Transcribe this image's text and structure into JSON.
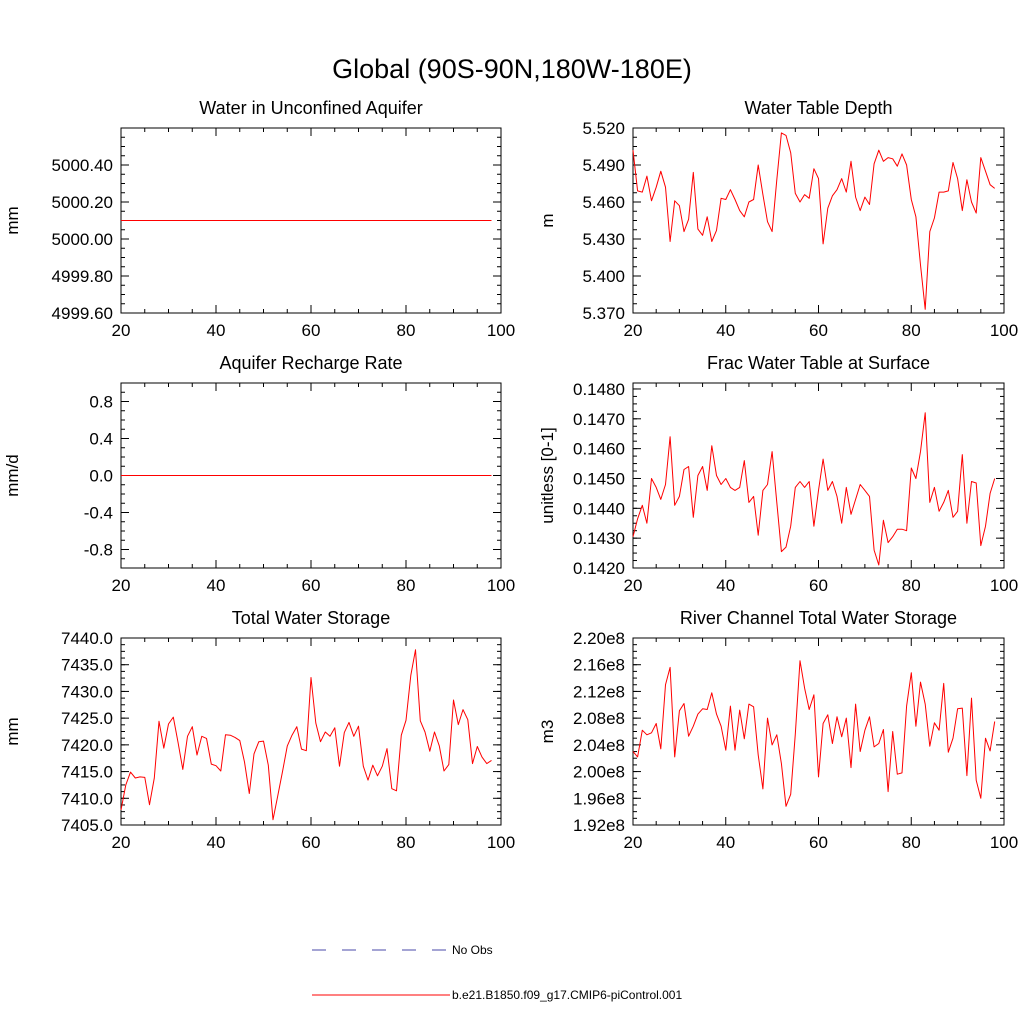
{
  "figure": {
    "title": "Global (90S-90N,180W-180E)",
    "series_color": "#ff0000",
    "obs_color": "#4a4aa8"
  },
  "legend": {
    "entries": [
      {
        "label": "No Obs",
        "style": "dashed",
        "color": "#4a4aa8"
      },
      {
        "label": "b.e21.B1850.f09_g17.CMIP6-piControl.001",
        "style": "solid",
        "color": "#ff0000"
      }
    ]
  },
  "chart_data": [
    {
      "type": "line",
      "title": "Water in Unconfined Aquifer",
      "xlabel": "",
      "ylabel": "mm",
      "xlim": [
        20,
        100
      ],
      "ylim": [
        4999.6,
        5000.6
      ],
      "xticks": [
        20,
        40,
        60,
        80,
        100
      ],
      "xtick_labels": [
        "20",
        "40",
        "60",
        "80",
        "100"
      ],
      "yticks": [
        4999.6,
        4999.8,
        5000.0,
        5000.2,
        5000.4
      ],
      "ytick_labels": [
        "4999.60",
        "4999.80",
        "5000.00",
        "5000.20",
        "5000.40"
      ],
      "x_start": 20,
      "series": [
        {
          "name": "b.e21.B1850.f09_g17.CMIP6-piControl.001",
          "values": [
            5000.1,
            5000.1,
            5000.1,
            5000.1,
            5000.1,
            5000.1,
            5000.1,
            5000.1,
            5000.1,
            5000.1,
            5000.1,
            5000.1,
            5000.1,
            5000.1,
            5000.1,
            5000.1,
            5000.1,
            5000.1,
            5000.1,
            5000.1,
            5000.1,
            5000.1,
            5000.1,
            5000.1,
            5000.1,
            5000.1,
            5000.1,
            5000.1,
            5000.1,
            5000.1,
            5000.1,
            5000.1,
            5000.1,
            5000.1,
            5000.1,
            5000.1,
            5000.1,
            5000.1,
            5000.1,
            5000.1,
            5000.1,
            5000.1,
            5000.1,
            5000.1,
            5000.1,
            5000.1,
            5000.1,
            5000.1,
            5000.1,
            5000.1,
            5000.1,
            5000.1,
            5000.1,
            5000.1,
            5000.1,
            5000.1,
            5000.1,
            5000.1,
            5000.1,
            5000.1,
            5000.1,
            5000.1,
            5000.1,
            5000.1,
            5000.1,
            5000.1,
            5000.1,
            5000.1,
            5000.1,
            5000.1,
            5000.1,
            5000.1,
            5000.1,
            5000.1,
            5000.1,
            5000.1,
            5000.1,
            5000.1,
            5000.1
          ]
        }
      ]
    },
    {
      "type": "line",
      "title": "Water Table Depth",
      "xlabel": "",
      "ylabel": "m",
      "xlim": [
        20,
        100
      ],
      "ylim": [
        5.37,
        5.52
      ],
      "xticks": [
        20,
        40,
        60,
        80,
        100
      ],
      "xtick_labels": [
        "20",
        "40",
        "60",
        "80",
        "100"
      ],
      "yticks": [
        5.37,
        5.4,
        5.43,
        5.46,
        5.49,
        5.52
      ],
      "ytick_labels": [
        "5.370",
        "5.400",
        "5.430",
        "5.460",
        "5.490",
        "5.520"
      ],
      "x_start": 20,
      "series": [
        {
          "name": "b.e21.B1850.f09_g17.CMIP6-piControl.001",
          "values": [
            5.502,
            5.469,
            5.468,
            5.481,
            5.461,
            5.472,
            5.485,
            5.472,
            5.428,
            5.461,
            5.457,
            5.436,
            5.446,
            5.484,
            5.438,
            5.433,
            5.448,
            5.428,
            5.437,
            5.463,
            5.462,
            5.47,
            5.462,
            5.453,
            5.448,
            5.46,
            5.462,
            5.49,
            5.466,
            5.444,
            5.436,
            5.478,
            5.516,
            5.514,
            5.5,
            5.467,
            5.46,
            5.466,
            5.463,
            5.487,
            5.479,
            5.426,
            5.455,
            5.465,
            5.47,
            5.479,
            5.468,
            5.493,
            5.464,
            5.453,
            5.464,
            5.458,
            5.491,
            5.502,
            5.493,
            5.496,
            5.495,
            5.489,
            5.499,
            5.49,
            5.462,
            5.448,
            5.409,
            5.373,
            5.436,
            5.447,
            5.468,
            5.468,
            5.469,
            5.492,
            5.479,
            5.453,
            5.478,
            5.46,
            5.451,
            5.496,
            5.485,
            5.474,
            5.471
          ]
        }
      ]
    },
    {
      "type": "line",
      "title": "Aquifer Recharge Rate",
      "xlabel": "",
      "ylabel": "mm/d",
      "xlim": [
        20,
        100
      ],
      "ylim": [
        -1.0,
        1.0
      ],
      "xticks": [
        20,
        40,
        60,
        80,
        100
      ],
      "xtick_labels": [
        "20",
        "40",
        "60",
        "80",
        "100"
      ],
      "yticks": [
        -0.8,
        -0.4,
        0.0,
        0.4,
        0.8
      ],
      "ytick_labels": [
        "-0.8",
        "-0.4",
        "0.0",
        "0.4",
        "0.8"
      ],
      "x_start": 20,
      "series": [
        {
          "name": "b.e21.B1850.f09_g17.CMIP6-piControl.001",
          "values": [
            0.0,
            0.0,
            0.0,
            0.0,
            0.0,
            0.0,
            0.0,
            0.0,
            0.0,
            0.0,
            0.0,
            0.0,
            0.0,
            0.0,
            0.0,
            0.0,
            0.0,
            0.0,
            0.0,
            0.0,
            0.0,
            0.0,
            0.0,
            0.0,
            0.0,
            0.0,
            0.0,
            0.0,
            0.0,
            0.0,
            0.0,
            0.0,
            0.0,
            0.0,
            0.0,
            0.0,
            0.0,
            0.0,
            0.0,
            0.0,
            0.0,
            0.0,
            0.0,
            0.0,
            0.0,
            0.0,
            0.0,
            0.0,
            0.0,
            0.0,
            0.0,
            0.0,
            0.0,
            0.0,
            0.0,
            0.0,
            0.0,
            0.0,
            0.0,
            0.0,
            0.0,
            0.0,
            0.0,
            0.0,
            0.0,
            0.0,
            0.0,
            0.0,
            0.0,
            0.0,
            0.0,
            0.0,
            0.0,
            0.0,
            0.0,
            0.0,
            0.0,
            0.0,
            0.0
          ]
        }
      ]
    },
    {
      "type": "line",
      "title": "Frac Water Table at Surface",
      "xlabel": "",
      "ylabel": "unitless [0-1]",
      "xlim": [
        20,
        100
      ],
      "ylim": [
        0.142,
        0.1482
      ],
      "xticks": [
        20,
        40,
        60,
        80,
        100
      ],
      "xtick_labels": [
        "20",
        "40",
        "60",
        "80",
        "100"
      ],
      "yticks": [
        0.142,
        0.143,
        0.144,
        0.145,
        0.146,
        0.147,
        0.148
      ],
      "ytick_labels": [
        "0.1420",
        "0.1430",
        "0.1440",
        "0.1450",
        "0.1460",
        "0.1470",
        "0.1480"
      ],
      "x_start": 20,
      "series": [
        {
          "name": "b.e21.B1850.f09_g17.CMIP6-piControl.001",
          "values": [
            0.14305,
            0.14365,
            0.1441,
            0.1435,
            0.145,
            0.1447,
            0.1443,
            0.1448,
            0.1464,
            0.1441,
            0.1444,
            0.1453,
            0.1454,
            0.1437,
            0.1451,
            0.1454,
            0.1446,
            0.1461,
            0.1451,
            0.1448,
            0.145,
            0.1447,
            0.1446,
            0.1447,
            0.1456,
            0.1442,
            0.1444,
            0.1431,
            0.1446,
            0.1448,
            0.1459,
            0.1442,
            0.14255,
            0.1427,
            0.1434,
            0.1447,
            0.1449,
            0.1447,
            0.1449,
            0.1434,
            0.1446,
            0.14565,
            0.1446,
            0.1449,
            0.1444,
            0.1435,
            0.1447,
            0.1438,
            0.1443,
            0.1448,
            0.1446,
            0.1444,
            0.1426,
            0.1421,
            0.1436,
            0.14285,
            0.14305,
            0.1433,
            0.1433,
            0.14325,
            0.14535,
            0.145,
            0.1459,
            0.1472,
            0.1442,
            0.1447,
            0.1439,
            0.1442,
            0.1446,
            0.1437,
            0.1439,
            0.1458,
            0.1435,
            0.1449,
            0.14485,
            0.14275,
            0.1434,
            0.1445,
            0.145
          ]
        }
      ]
    },
    {
      "type": "line",
      "title": "Total Water Storage",
      "xlabel": "",
      "ylabel": "mm",
      "xlim": [
        20,
        100
      ],
      "ylim": [
        7405.0,
        7440.0
      ],
      "xticks": [
        20,
        40,
        60,
        80,
        100
      ],
      "xtick_labels": [
        "20",
        "40",
        "60",
        "80",
        "100"
      ],
      "yticks": [
        7405.0,
        7410.0,
        7415.0,
        7420.0,
        7425.0,
        7430.0,
        7435.0,
        7440.0
      ],
      "ytick_labels": [
        "7405.0",
        "7410.0",
        "7415.0",
        "7420.0",
        "7425.0",
        "7430.0",
        "7435.0",
        "7440.0"
      ],
      "x_start": 20,
      "series": [
        {
          "name": "b.e21.B1850.f09_g17.CMIP6-piControl.001",
          "values": [
            7407.8,
            7412.5,
            7414.9,
            7413.8,
            7414.0,
            7413.9,
            7408.8,
            7413.8,
            7424.4,
            7419.4,
            7423.9,
            7425.2,
            7420.5,
            7415.4,
            7421.6,
            7423.4,
            7418.1,
            7421.6,
            7421.2,
            7416.4,
            7416.1,
            7415.1,
            7421.9,
            7421.8,
            7421.4,
            7420.8,
            7416.8,
            7410.9,
            7418.3,
            7420.6,
            7420.7,
            7416.2,
            7406.0,
            7410.5,
            7415.0,
            7419.8,
            7421.8,
            7423.4,
            7419.2,
            7418.9,
            7432.6,
            7424.1,
            7420.6,
            7422.4,
            7421.6,
            7423.2,
            7416.0,
            7422.3,
            7424.2,
            7421.6,
            7423.5,
            7416.0,
            7413.4,
            7416.2,
            7414.2,
            7416.0,
            7419.3,
            7411.8,
            7411.4,
            7421.8,
            7424.6,
            7433.0,
            7437.8,
            7424.5,
            7422.4,
            7418.8,
            7422.4,
            7419.8,
            7415.1,
            7416.3,
            7428.4,
            7423.8,
            7426.6,
            7424.7,
            7416.5,
            7419.7,
            7417.7,
            7416.5,
            7417.1
          ]
        }
      ]
    },
    {
      "type": "line",
      "title": "River Channel Total Water Storage",
      "xlabel": "",
      "ylabel": "m3",
      "xlim": [
        20,
        100
      ],
      "ylim": [
        192000000.0,
        220000000.0
      ],
      "xticks": [
        20,
        40,
        60,
        80,
        100
      ],
      "xtick_labels": [
        "20",
        "40",
        "60",
        "80",
        "100"
      ],
      "yticks": [
        192000000.0,
        196000000.0,
        200000000.0,
        204000000.0,
        208000000.0,
        212000000.0,
        216000000.0,
        220000000.0
      ],
      "ytick_labels": [
        "1.92e8",
        "1.96e8",
        "2.00e8",
        "2.04e8",
        "2.08e8",
        "2.12e8",
        "2.16e8",
        "2.20e8"
      ],
      "x_start": 20,
      "series": [
        {
          "name": "b.e21.B1850.f09_g17.CMIP6-piControl.001",
          "values": [
            203000000.0,
            202200000.0,
            206200000.0,
            205500000.0,
            205800000.0,
            207200000.0,
            203400000.0,
            213000000.0,
            215600000.0,
            202200000.0,
            209100000.0,
            210200000.0,
            205300000.0,
            206800000.0,
            208600000.0,
            209400000.0,
            209300000.0,
            211800000.0,
            208600000.0,
            206800000.0,
            203200000.0,
            209800000.0,
            203200000.0,
            209200000.0,
            204900000.0,
            210100000.0,
            209700000.0,
            202500000.0,
            197400000.0,
            208000000.0,
            204000000.0,
            205500000.0,
            201200000.0,
            194800000.0,
            196600000.0,
            205600000.0,
            216600000.0,
            212500000.0,
            209300000.0,
            211500000.0,
            199200000.0,
            207200000.0,
            208500000.0,
            204200000.0,
            208200000.0,
            205200000.0,
            208000000.0,
            200600000.0,
            210100000.0,
            203000000.0,
            206200000.0,
            208200000.0,
            203700000.0,
            204200000.0,
            206300000.0,
            197000000.0,
            206000000.0,
            199600000.0,
            199800000.0,
            209800000.0,
            214800000.0,
            206800000.0,
            213400000.0,
            210100000.0,
            203800000.0,
            207300000.0,
            206200000.0,
            213200000.0,
            202900000.0,
            205000000.0,
            209400000.0,
            209500000.0,
            199400000.0,
            211000000.0,
            198700000.0,
            196000000.0,
            205000000.0,
            203100000.0,
            207500000.0
          ]
        }
      ]
    }
  ]
}
